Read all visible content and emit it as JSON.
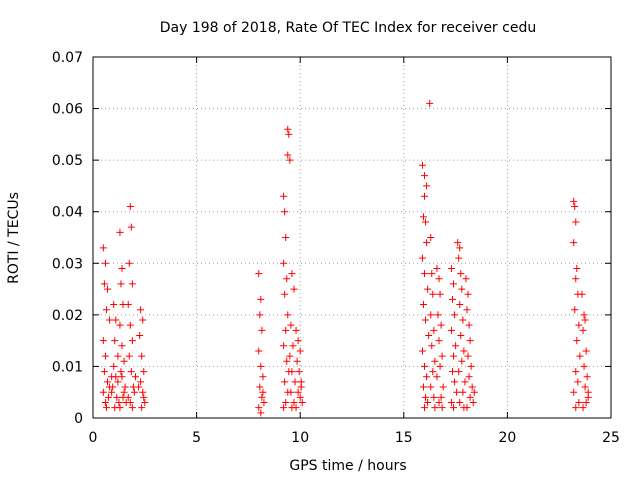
{
  "chart_data": {
    "type": "scatter",
    "title": "Day 198 of 2018, Rate Of TEC Index for receiver cedu",
    "xlabel": "GPS time / hours",
    "ylabel": "ROTI / TECUs",
    "xlim": [
      0,
      25
    ],
    "ylim": [
      0,
      0.07
    ],
    "x_ticks": [
      0,
      5,
      10,
      15,
      20,
      25
    ],
    "x_tick_labels": [
      "0",
      "5",
      "10",
      "15",
      "20",
      "25"
    ],
    "y_ticks": [
      0,
      0.01,
      0.02,
      0.03,
      0.04,
      0.05,
      0.06,
      0.07
    ],
    "y_tick_labels": [
      "0",
      "0.01",
      "0.02",
      "0.03",
      "0.04",
      "0.05",
      "0.06",
      "0.07"
    ],
    "grid": true,
    "marker": "+",
    "marker_color": "#ff0000",
    "series": [
      {
        "name": "ROTI",
        "points": [
          [
            0.5,
            0.033
          ],
          [
            0.6,
            0.03
          ],
          [
            0.55,
            0.026
          ],
          [
            0.7,
            0.025
          ],
          [
            0.65,
            0.021
          ],
          [
            0.8,
            0.019
          ],
          [
            0.5,
            0.015
          ],
          [
            0.6,
            0.012
          ],
          [
            0.55,
            0.009
          ],
          [
            0.7,
            0.007
          ],
          [
            0.5,
            0.005
          ],
          [
            0.6,
            0.003
          ],
          [
            0.65,
            0.002
          ],
          [
            0.75,
            0.004
          ],
          [
            0.8,
            0.006
          ],
          [
            0.9,
            0.008
          ],
          [
            1.0,
            0.022
          ],
          [
            1.1,
            0.019
          ],
          [
            1.05,
            0.015
          ],
          [
            1.2,
            0.012
          ],
          [
            1.0,
            0.01
          ],
          [
            1.1,
            0.008
          ],
          [
            0.95,
            0.006
          ],
          [
            1.15,
            0.004
          ],
          [
            1.25,
            0.003
          ],
          [
            1.05,
            0.002
          ],
          [
            0.9,
            0.005
          ],
          [
            1.2,
            0.007
          ],
          [
            1.3,
            0.036
          ],
          [
            1.4,
            0.029
          ],
          [
            1.35,
            0.026
          ],
          [
            1.45,
            0.022
          ],
          [
            1.3,
            0.018
          ],
          [
            1.4,
            0.014
          ],
          [
            1.5,
            0.011
          ],
          [
            1.35,
            0.009
          ],
          [
            1.55,
            0.006
          ],
          [
            1.45,
            0.004
          ],
          [
            1.6,
            0.003
          ],
          [
            1.3,
            0.002
          ],
          [
            1.5,
            0.005
          ],
          [
            1.4,
            0.008
          ],
          [
            1.8,
            0.041
          ],
          [
            1.85,
            0.037
          ],
          [
            1.75,
            0.03
          ],
          [
            1.9,
            0.026
          ],
          [
            1.7,
            0.022
          ],
          [
            1.8,
            0.018
          ],
          [
            1.9,
            0.015
          ],
          [
            1.75,
            0.012
          ],
          [
            1.85,
            0.009
          ],
          [
            1.95,
            0.006
          ],
          [
            1.7,
            0.004
          ],
          [
            1.8,
            0.003
          ],
          [
            1.9,
            0.002
          ],
          [
            2.0,
            0.005
          ],
          [
            2.05,
            0.008
          ],
          [
            2.3,
            0.021
          ],
          [
            2.4,
            0.019
          ],
          [
            2.25,
            0.016
          ],
          [
            2.35,
            0.012
          ],
          [
            2.45,
            0.009
          ],
          [
            2.3,
            0.007
          ],
          [
            2.4,
            0.005
          ],
          [
            2.5,
            0.003
          ],
          [
            2.35,
            0.002
          ],
          [
            2.45,
            0.004
          ],
          [
            2.2,
            0.006
          ],
          [
            8.0,
            0.028
          ],
          [
            8.1,
            0.023
          ],
          [
            8.05,
            0.02
          ],
          [
            8.15,
            0.017
          ],
          [
            8.0,
            0.013
          ],
          [
            8.1,
            0.01
          ],
          [
            8.2,
            0.008
          ],
          [
            8.05,
            0.006
          ],
          [
            8.15,
            0.004
          ],
          [
            8.25,
            0.003
          ],
          [
            8.0,
            0.002
          ],
          [
            8.1,
            0.001
          ],
          [
            8.2,
            0.005
          ],
          [
            9.2,
            0.043
          ],
          [
            9.25,
            0.04
          ],
          [
            9.3,
            0.035
          ],
          [
            9.2,
            0.03
          ],
          [
            9.35,
            0.027
          ],
          [
            9.25,
            0.024
          ],
          [
            9.4,
            0.02
          ],
          [
            9.3,
            0.017
          ],
          [
            9.2,
            0.014
          ],
          [
            9.35,
            0.011
          ],
          [
            9.45,
            0.009
          ],
          [
            9.25,
            0.007
          ],
          [
            9.4,
            0.005
          ],
          [
            9.3,
            0.003
          ],
          [
            9.2,
            0.002
          ],
          [
            9.4,
            0.056
          ],
          [
            9.45,
            0.055
          ],
          [
            9.4,
            0.051
          ],
          [
            9.5,
            0.05
          ],
          [
            9.6,
            0.028
          ],
          [
            9.7,
            0.025
          ],
          [
            9.55,
            0.018
          ],
          [
            9.65,
            0.014
          ],
          [
            9.5,
            0.012
          ],
          [
            9.6,
            0.009
          ],
          [
            9.75,
            0.007
          ],
          [
            9.55,
            0.005
          ],
          [
            9.7,
            0.003
          ],
          [
            9.6,
            0.002
          ],
          [
            9.8,
            0.017
          ],
          [
            9.9,
            0.015
          ],
          [
            10.0,
            0.013
          ],
          [
            9.85,
            0.011
          ],
          [
            9.95,
            0.009
          ],
          [
            10.05,
            0.007
          ],
          [
            9.9,
            0.005
          ],
          [
            10.0,
            0.004
          ],
          [
            10.1,
            0.003
          ],
          [
            9.8,
            0.002
          ],
          [
            10.05,
            0.006
          ],
          [
            15.9,
            0.049
          ],
          [
            16.0,
            0.047
          ],
          [
            16.1,
            0.045
          ],
          [
            16.0,
            0.043
          ],
          [
            15.95,
            0.039
          ],
          [
            16.05,
            0.038
          ],
          [
            16.1,
            0.034
          ],
          [
            15.9,
            0.031
          ],
          [
            16.0,
            0.028
          ],
          [
            16.15,
            0.025
          ],
          [
            15.95,
            0.022
          ],
          [
            16.05,
            0.019
          ],
          [
            16.2,
            0.016
          ],
          [
            15.9,
            0.013
          ],
          [
            16.0,
            0.01
          ],
          [
            16.1,
            0.008
          ],
          [
            15.95,
            0.006
          ],
          [
            16.05,
            0.004
          ],
          [
            16.15,
            0.003
          ],
          [
            16.0,
            0.002
          ],
          [
            16.25,
            0.061
          ],
          [
            16.3,
            0.035
          ],
          [
            16.35,
            0.028
          ],
          [
            16.4,
            0.024
          ],
          [
            16.3,
            0.02
          ],
          [
            16.45,
            0.017
          ],
          [
            16.35,
            0.014
          ],
          [
            16.5,
            0.011
          ],
          [
            16.4,
            0.009
          ],
          [
            16.3,
            0.006
          ],
          [
            16.45,
            0.004
          ],
          [
            16.5,
            0.002
          ],
          [
            16.6,
            0.029
          ],
          [
            16.7,
            0.027
          ],
          [
            16.75,
            0.024
          ],
          [
            16.65,
            0.02
          ],
          [
            16.8,
            0.018
          ],
          [
            16.7,
            0.015
          ],
          [
            16.85,
            0.012
          ],
          [
            16.75,
            0.01
          ],
          [
            16.6,
            0.008
          ],
          [
            16.9,
            0.006
          ],
          [
            16.8,
            0.004
          ],
          [
            16.7,
            0.003
          ],
          [
            16.85,
            0.002
          ],
          [
            17.3,
            0.029
          ],
          [
            17.4,
            0.026
          ],
          [
            17.35,
            0.023
          ],
          [
            17.45,
            0.02
          ],
          [
            17.3,
            0.017
          ],
          [
            17.5,
            0.014
          ],
          [
            17.4,
            0.012
          ],
          [
            17.35,
            0.009
          ],
          [
            17.45,
            0.007
          ],
          [
            17.55,
            0.005
          ],
          [
            17.3,
            0.003
          ],
          [
            17.4,
            0.002
          ],
          [
            17.6,
            0.034
          ],
          [
            17.7,
            0.033
          ],
          [
            17.65,
            0.031
          ],
          [
            17.75,
            0.028
          ],
          [
            17.8,
            0.025
          ],
          [
            17.7,
            0.022
          ],
          [
            17.85,
            0.019
          ],
          [
            17.75,
            0.016
          ],
          [
            17.9,
            0.013
          ],
          [
            17.8,
            0.011
          ],
          [
            17.65,
            0.009
          ],
          [
            17.95,
            0.007
          ],
          [
            17.85,
            0.005
          ],
          [
            17.7,
            0.003
          ],
          [
            17.9,
            0.002
          ],
          [
            18.0,
            0.027
          ],
          [
            18.1,
            0.024
          ],
          [
            18.05,
            0.021
          ],
          [
            18.15,
            0.018
          ],
          [
            18.2,
            0.015
          ],
          [
            18.1,
            0.012
          ],
          [
            18.25,
            0.01
          ],
          [
            18.15,
            0.008
          ],
          [
            18.3,
            0.006
          ],
          [
            18.2,
            0.004
          ],
          [
            18.35,
            0.003
          ],
          [
            18.05,
            0.002
          ],
          [
            18.4,
            0.005
          ],
          [
            23.2,
            0.042
          ],
          [
            23.25,
            0.041
          ],
          [
            23.3,
            0.038
          ],
          [
            23.2,
            0.034
          ],
          [
            23.35,
            0.029
          ],
          [
            23.3,
            0.027
          ],
          [
            23.4,
            0.024
          ],
          [
            23.25,
            0.021
          ],
          [
            23.45,
            0.018
          ],
          [
            23.35,
            0.015
          ],
          [
            23.5,
            0.012
          ],
          [
            23.3,
            0.009
          ],
          [
            23.4,
            0.007
          ],
          [
            23.2,
            0.005
          ],
          [
            23.45,
            0.003
          ],
          [
            23.3,
            0.002
          ],
          [
            23.6,
            0.024
          ],
          [
            23.7,
            0.02
          ],
          [
            23.75,
            0.019
          ],
          [
            23.65,
            0.017
          ],
          [
            23.8,
            0.013
          ],
          [
            23.7,
            0.01
          ],
          [
            23.85,
            0.008
          ],
          [
            23.75,
            0.006
          ],
          [
            23.9,
            0.004
          ],
          [
            23.8,
            0.003
          ],
          [
            23.65,
            0.002
          ],
          [
            23.9,
            0.005
          ]
        ]
      }
    ]
  }
}
